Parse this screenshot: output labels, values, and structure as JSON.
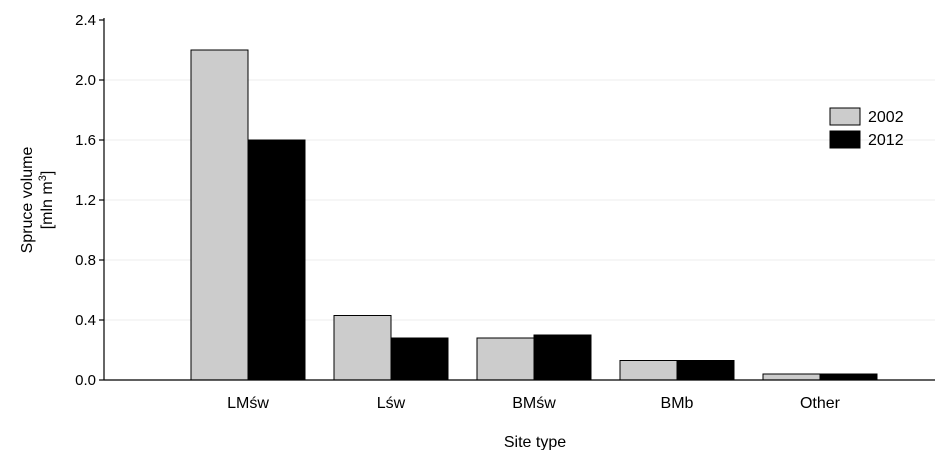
{
  "chart_data": {
    "type": "bar",
    "title": "",
    "xlabel": "Site type",
    "ylabel": {
      "line1": "Spruce volume",
      "line2_prefix": "[mln m",
      "line2_sup": "3",
      "line2_suffix": "]"
    },
    "categories": [
      "LMśw",
      "Lśw",
      "BMśw",
      "BMb",
      "Other"
    ],
    "series": [
      {
        "name": "2002",
        "color": "#cccccc",
        "values": [
          2.2,
          0.43,
          0.28,
          0.13,
          0.04
        ]
      },
      {
        "name": "2012",
        "color": "#000000",
        "values": [
          1.6,
          0.28,
          0.3,
          0.13,
          0.04
        ]
      }
    ],
    "ylim": [
      0,
      2.4
    ],
    "yticks": [
      0.0,
      0.4,
      0.8,
      1.2,
      1.6,
      2.0,
      2.4
    ],
    "ytick_labels": [
      "0.0",
      "0.4",
      "0.8",
      "1.2",
      "1.6",
      "2.0",
      "2.4"
    ],
    "grid": true,
    "legend_position": "right"
  }
}
